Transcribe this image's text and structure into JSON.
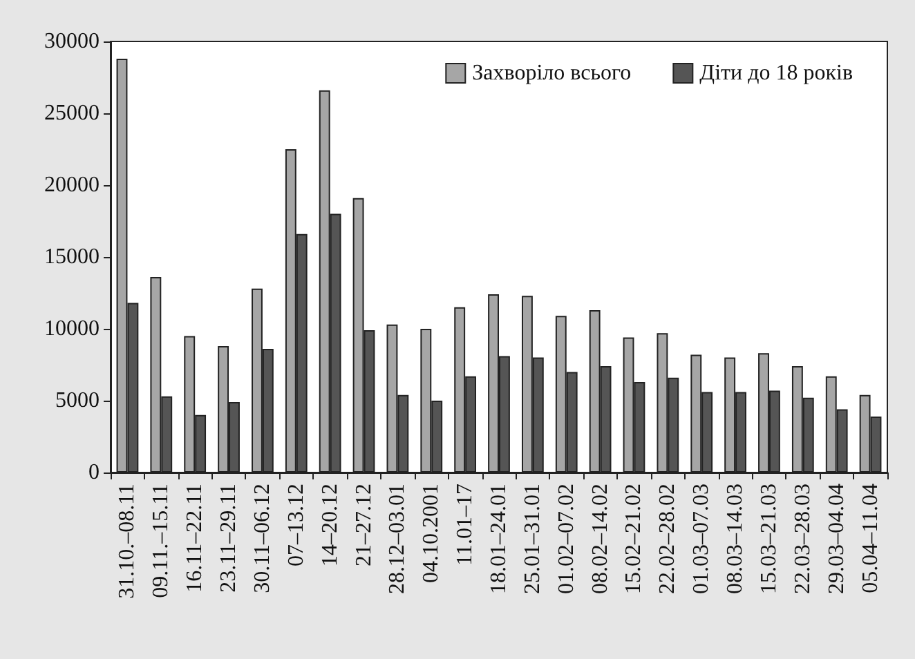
{
  "chart_data": {
    "type": "bar",
    "categories": [
      "31.10.–08.11",
      "09.11.–15.11",
      "16.11–22.11",
      "23.11–29.11",
      "30.11–06.12",
      "07–13.12",
      "14–20.12",
      "21–27.12",
      "28.12–03.01",
      "04.10.2001",
      "11.01–17",
      "18.01–24.01",
      "25.01–31.01",
      "01.02–07.02",
      "08.02–14.02",
      "15.02–21.02",
      "22.02–28.02",
      "01.03–07.03",
      "08.03–14.03",
      "15.03–21.03",
      "22.03–28.03",
      "29.03–04.04",
      "05.04–11.04"
    ],
    "series": [
      {
        "name": "Захворіло всього",
        "color": "#a6a6a6",
        "values": [
          28800,
          13600,
          9500,
          8800,
          12800,
          22500,
          26600,
          19100,
          10300,
          10000,
          11500,
          12400,
          12300,
          10900,
          11300,
          9400,
          9700,
          8200,
          8000,
          8300,
          7400,
          6700,
          5400
        ]
      },
      {
        "name": "Діти до 18 років",
        "color": "#555555",
        "values": [
          11800,
          5300,
          4000,
          4900,
          8600,
          16600,
          18000,
          9900,
          5400,
          5000,
          6700,
          8100,
          8000,
          7000,
          7400,
          6300,
          6600,
          5600,
          5600,
          5700,
          5200,
          4400,
          3900
        ]
      }
    ],
    "ylim": [
      0,
      30000
    ],
    "yticks": [
      0,
      5000,
      10000,
      15000,
      20000,
      25000,
      30000
    ],
    "grid": false,
    "legend": "top right"
  }
}
